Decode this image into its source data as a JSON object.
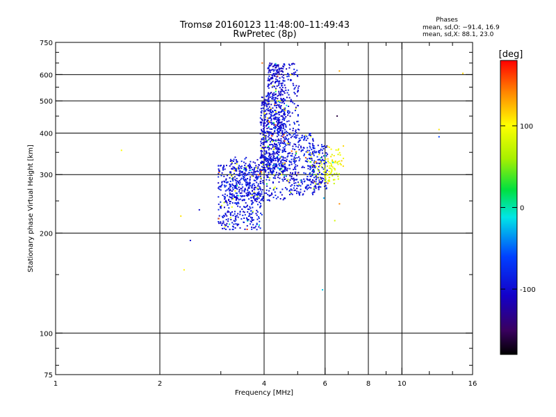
{
  "chart_data": {
    "type": "scatter",
    "title": "Tromsø 20160123 11:48:00–11:49:43",
    "subtitle": "RwPretec (8p)",
    "xlabel": "Frequency [MHz]",
    "ylabel": "Stationary phase Virtual Height [km]",
    "x_scale": "log",
    "y_scale": "log",
    "xlim": [
      1,
      16
    ],
    "ylim": [
      75,
      750
    ],
    "x_ticks": [
      1,
      2,
      4,
      6,
      8,
      10,
      16
    ],
    "x_tick_labels": [
      "1",
      "2",
      "4",
      "6",
      "8",
      "10",
      "16"
    ],
    "y_ticks": [
      75,
      100,
      200,
      300,
      400,
      500,
      600,
      750
    ],
    "y_tick_labels": [
      "75",
      "100",
      "200",
      "300",
      "400",
      "500",
      "600",
      "750"
    ],
    "grid": true,
    "phases": {
      "heading": "Phases",
      "o_line": "mean, sd,O: −91.4, 16.9",
      "x_line": "mean, sd,X:  88.1, 23.0"
    },
    "colorbar": {
      "label": "[deg]",
      "range": [
        -180,
        180
      ],
      "tick_values": [
        100,
        0,
        -100
      ],
      "tick_labels": [
        "100",
        "0",
        "-100"
      ]
    },
    "series": [
      {
        "clusters": [
          {
            "f": [
              2.95,
              3.95
            ],
            "h": [
              205,
              320
            ],
            "n": 420,
            "phase": -92
          },
          {
            "f": [
              3.15,
              4.6
            ],
            "h": [
              250,
              340
            ],
            "n": 320,
            "phase": -92
          },
          {
            "f": [
              3.9,
              4.6
            ],
            "h": [
              300,
              520
            ],
            "n": 620,
            "phase": -95
          },
          {
            "f": [
              4.1,
              4.55
            ],
            "h": [
              520,
              650
            ],
            "n": 140,
            "phase": -100
          },
          {
            "f": [
              4.55,
              5.05
            ],
            "h": [
              400,
              650
            ],
            "n": 110,
            "phase": -95
          },
          {
            "f": [
              4.6,
              5.6
            ],
            "h": [
              260,
              400
            ],
            "n": 280,
            "phase": -92
          },
          {
            "f": [
              5.4,
              6.1
            ],
            "h": [
              270,
              370
            ],
            "n": 150,
            "phase": -90
          },
          {
            "f": [
              5.6,
              6.6
            ],
            "h": [
              280,
              330
            ],
            "n": 70,
            "phase": 85
          },
          {
            "f": [
              6.1,
              6.8
            ],
            "h": [
              300,
              380
            ],
            "n": 25,
            "phase": 95
          }
        ],
        "points": [
          {
            "f": 3.95,
            "h": 650,
            "phase": 150
          },
          {
            "f": 6.6,
            "h": 615,
            "phase": 130
          },
          {
            "f": 6.5,
            "h": 450,
            "phase": -160
          },
          {
            "f": 6.7,
            "h": 330,
            "phase": 120
          },
          {
            "f": 6.6,
            "h": 245,
            "phase": 140
          },
          {
            "f": 6.4,
            "h": 218,
            "phase": 80
          },
          {
            "f": 5.9,
            "h": 135,
            "phase": -20
          },
          {
            "f": 5.95,
            "h": 255,
            "phase": -30
          },
          {
            "f": 1.55,
            "h": 355,
            "phase": 100
          },
          {
            "f": 2.3,
            "h": 225,
            "phase": 110
          },
          {
            "f": 2.35,
            "h": 155,
            "phase": 105
          },
          {
            "f": 2.6,
            "h": 235,
            "phase": -100
          },
          {
            "f": 2.45,
            "h": 190,
            "phase": -100
          },
          {
            "f": 12.8,
            "h": 410,
            "phase": 110
          },
          {
            "f": 12.8,
            "h": 390,
            "phase": -60
          },
          {
            "f": 15.0,
            "h": 605,
            "phase": 115
          }
        ]
      }
    ]
  }
}
